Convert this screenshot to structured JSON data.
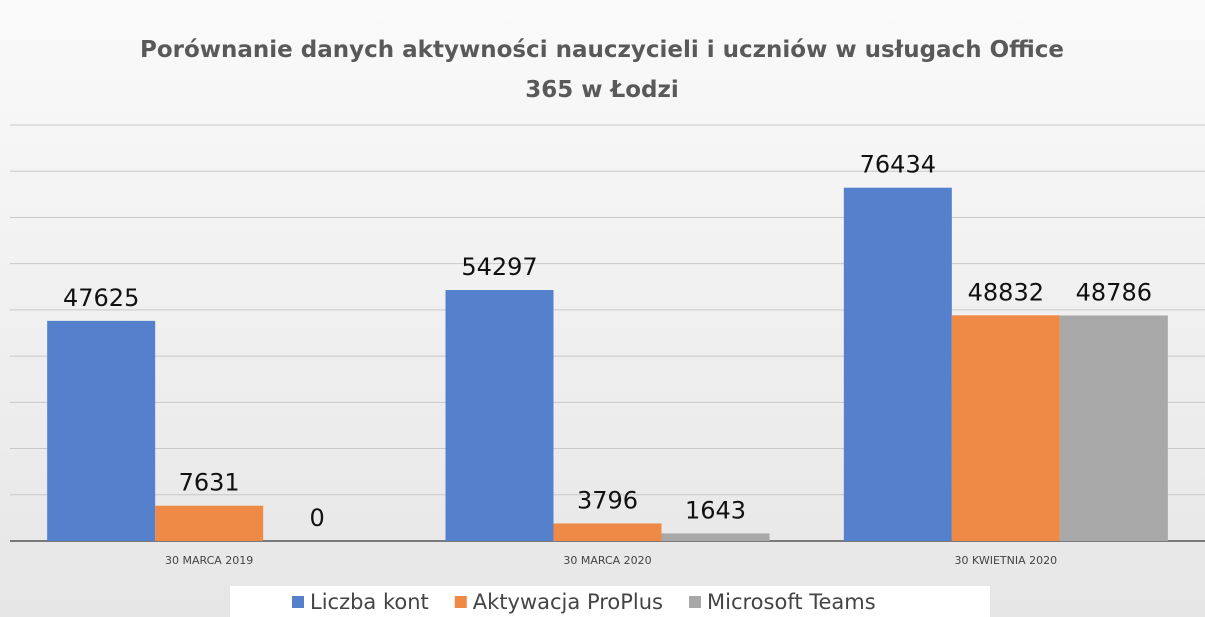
{
  "chart_data": {
    "type": "bar",
    "title": "Porównanie danych aktywności nauczycieli i uczniów w usługach Office 365 w Łodzi",
    "categories": [
      "30 MARCA 2019",
      "30 MARCA 2020",
      "30 KWIETNIA 2020"
    ],
    "series": [
      {
        "name": "Liczba kont",
        "color": "#5580cc",
        "values": [
          47625,
          54297,
          76434
        ]
      },
      {
        "name": "Aktywacja ProPlus",
        "color": "#ee8a45",
        "values": [
          7631,
          3796,
          48832
        ]
      },
      {
        "name": "Microsoft Teams",
        "color": "#a8a8a8",
        "values": [
          0,
          1643,
          48786
        ]
      }
    ],
    "ylim": [
      0,
      90000
    ],
    "yticks": [
      0,
      10000,
      20000,
      30000,
      40000,
      50000,
      60000,
      70000,
      80000,
      90000
    ],
    "grid": true,
    "legend": "bottom"
  }
}
